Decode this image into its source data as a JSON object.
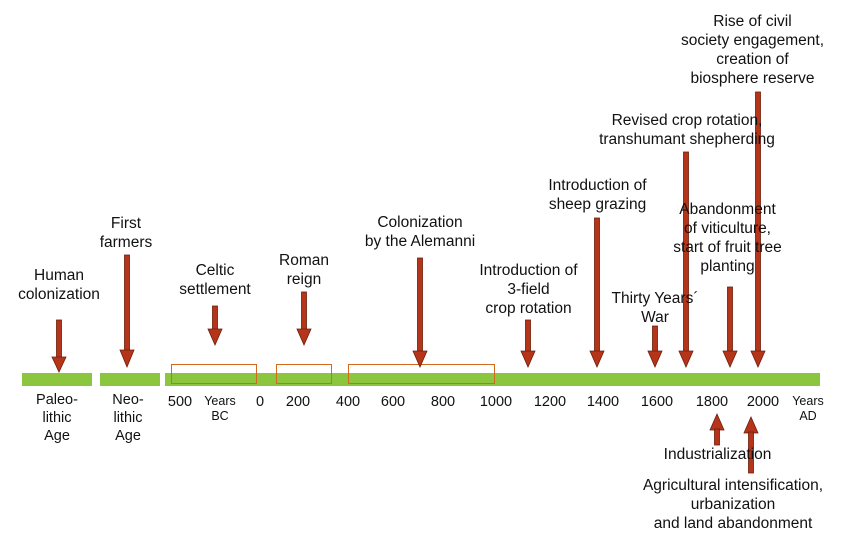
{
  "era_labels": {
    "paleolithic": "Paleo-\nlithic\nAge",
    "neolithic": "Neo-\nlithic\nAge"
  },
  "axis": {
    "ticks": [
      "500",
      "0",
      "200",
      "400",
      "600",
      "800",
      "1000",
      "1200",
      "1400",
      "1600",
      "1800",
      "2000"
    ],
    "bc_label": "Years\nBC",
    "ad_label": "Years\nAD"
  },
  "events_above": {
    "human_colonization": "Human\ncolonization",
    "first_farmers": "First\nfarmers",
    "celtic_settlement": "Celtic\nsettlement",
    "roman_reign": "Roman\nreign",
    "alemanni": "Colonization\nby the Alemanni",
    "three_field": "Introduction of\n3-field\ncrop rotation",
    "sheep_grazing": "Introduction of\nsheep grazing",
    "thirty_years_war": "Thirty Years´\nWar",
    "revised_crop_rotation": "Revised crop rotation,\ntranshumant shepherding",
    "viticulture": "Abandonment\nof viticulture,\nstart of fruit tree\nplanting",
    "civil_society": "Rise of civil\nsociety engagement,\ncreation of\nbiosphere reserve"
  },
  "events_below": {
    "industrialization": "Industrialization",
    "agricultural_intensification": "Agricultural intensification,\nurbanization\nand land abandonment"
  },
  "colors": {
    "timeline_bar": "#8cc63f",
    "arrow": "#b5351a",
    "arrow_outline": "#6e1d0a",
    "period_box": "#d2691e"
  }
}
